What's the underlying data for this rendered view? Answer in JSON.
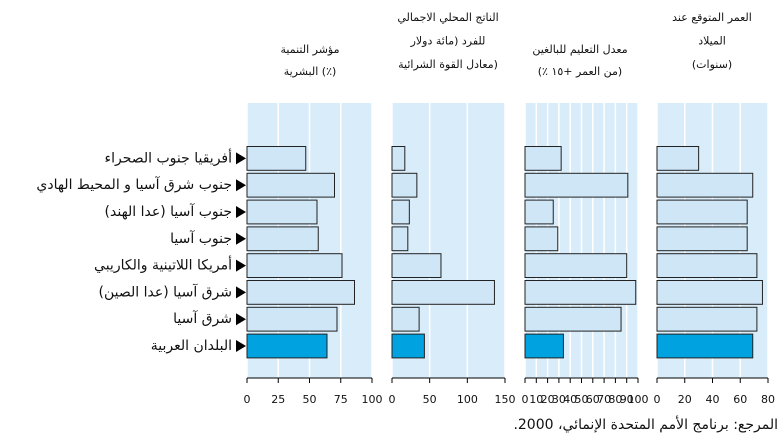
{
  "categories": [
    "أفريقيا جنوب الصحراء",
    "جنوب شرق آسيا و المحيط الهادي",
    "جنوب آسيا (عدا الهند)",
    "جنوب آسيا",
    "أمريكا اللاتينية والكاريبي",
    "شرق آسيا (عدا الصين)",
    "شرق آسيا",
    "البلدان العربية"
  ],
  "source": "المرجع: برنامج الأمم المتحدة الإنمائي، 2000.",
  "chart_data": [
    {
      "type": "barh",
      "title": [
        "مؤشر التنمية",
        "البشرية (٪)"
      ],
      "values": [
        47,
        70,
        56,
        57,
        76,
        86,
        72,
        64
      ],
      "color": "#cfe6f7",
      "highlight_color": "#00a3e0",
      "xlim": [
        0,
        100
      ],
      "xticks": [
        0,
        25,
        50,
        75,
        100
      ],
      "grid": true
    },
    {
      "type": "barh",
      "title": [
        "الناتج المحلي الاجمالي",
        "للفرد (مائة دولار",
        "معادل القوة الشرائية)"
      ],
      "values": [
        17,
        33,
        23,
        21,
        65,
        136,
        36,
        43
      ],
      "color": "#cfe6f7",
      "highlight_color": "#00a3e0",
      "xlim": [
        0,
        150
      ],
      "xticks": [
        0,
        50,
        100,
        150
      ],
      "grid": true
    },
    {
      "type": "barh",
      "title": [
        "معدل التعليم للبالغين",
        "(٪ من العمر +١٥)"
      ],
      "values": [
        32,
        91,
        25,
        29,
        90,
        98,
        85,
        34
      ],
      "color": "#cfe6f7",
      "highlight_color": "#00a3e0",
      "xlim": [
        0,
        100
      ],
      "xticks": [
        0,
        10,
        20,
        30,
        40,
        50,
        60,
        70,
        80,
        90,
        100
      ],
      "grid": true
    },
    {
      "type": "barh",
      "title": [
        "العمر المتوقع عند",
        "الميلاد",
        "(سنوات)"
      ],
      "values": [
        30,
        69,
        65,
        65,
        72,
        76,
        72,
        69
      ],
      "color": "#cfe6f7",
      "highlight_color": "#00a3e0",
      "xlim": [
        0,
        80
      ],
      "xticks": [
        0,
        20,
        40,
        60,
        80
      ],
      "grid": true
    }
  ]
}
